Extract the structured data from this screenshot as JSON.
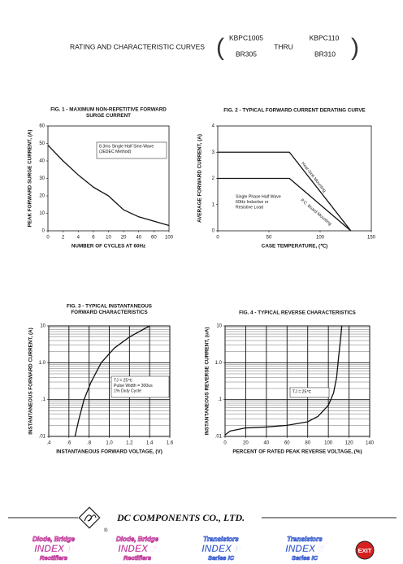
{
  "header": {
    "title": "RATING AND CHARACTERISTIC CURVES",
    "part_from_top": "KBPC1005",
    "part_from_bottom": "BR305",
    "thru": "THRU",
    "part_to_top": "KBPC110",
    "part_to_bottom": "BR310"
  },
  "chart_data": [
    {
      "type": "line",
      "title": [
        "FIG. 1 - MAXIMUM NON-REPETITIVE FORWARD",
        "SURGE CURRENT"
      ],
      "xlabel": "NUMBER OF CYCLES AT 60Hz",
      "ylabel": "PEAK FORWARD SURGE CURRENT, (A)",
      "categories": [
        "0",
        "2",
        "4",
        "6",
        "10",
        "20",
        "40",
        "60",
        "100"
      ],
      "series": [
        {
          "color": "#111111",
          "values": [
            49,
            40,
            32,
            25,
            20,
            12,
            8,
            5.5,
            3
          ]
        }
      ],
      "ylim": [
        0,
        60
      ],
      "yticks": [
        0,
        10,
        20,
        30,
        40,
        50,
        60
      ],
      "grid": false,
      "annotations": [
        [
          "8.3ms Single Half Sine-Wave",
          "(JEDEC Method)"
        ]
      ]
    },
    {
      "type": "line",
      "title": [
        "FIG. 2 - TYPICAL FORWARD CURRENT DERATING CURVE"
      ],
      "xlabel": "CASE TEMPERATURE, (℃)",
      "ylabel": "AVERAGE FORWARD CURRENT, (A)",
      "x": [
        0,
        70,
        130
      ],
      "series": [
        {
          "name": "Heat-Sink Mounting",
          "color": "#111111",
          "values": [
            3,
            3,
            0
          ]
        },
        {
          "name": "P.C. Board Mounting",
          "color": "#111111",
          "values": [
            2,
            2,
            0
          ]
        }
      ],
      "xlim": [
        0,
        150
      ],
      "xticks": [
        0,
        50,
        100,
        150
      ],
      "ylim": [
        0,
        4
      ],
      "yticks": [
        0,
        1,
        2,
        3,
        4
      ],
      "grid": false,
      "annotations": [
        [
          "Single Phase Half Wave",
          "60Hz Inductive or",
          "Resistive Load"
        ]
      ]
    },
    {
      "type": "line",
      "title": [
        "FIG. 3 - TYPICAL INSTANTANEOUS",
        "FORWARD CHARACTERISTICS"
      ],
      "xlabel": "INSTANTANEOUS FORWARD VOLTAGE, (V)",
      "ylabel": "INSTANTANEOUS FORWARD CURRENT, (A)",
      "x": [
        0.66,
        0.7,
        0.75,
        0.82,
        0.92,
        1.05,
        1.2,
        1.4
      ],
      "series": [
        {
          "color": "#111111",
          "values": [
            0.01,
            0.03,
            0.1,
            0.3,
            1,
            2.5,
            5,
            10
          ]
        }
      ],
      "xlim": [
        0.4,
        1.6
      ],
      "xticks": [
        {
          "value": 0.4,
          "label": ".4"
        },
        {
          "value": 0.6,
          "label": ".6"
        },
        {
          "value": 0.8,
          "label": ".8"
        },
        {
          "value": 1.0,
          "label": "1.0"
        },
        {
          "value": 1.2,
          "label": "1.2"
        },
        {
          "value": 1.4,
          "label": "1.4"
        },
        {
          "value": 1.6,
          "label": "1.6"
        }
      ],
      "ylim": [
        0.01,
        10
      ],
      "yscale": "log",
      "yticks": [
        {
          "value": 0.01,
          "label": ".01"
        },
        {
          "value": 0.1,
          "label": ".1"
        },
        {
          "value": 1,
          "label": "1.0"
        },
        10
      ],
      "grid": true,
      "annotations": [
        [
          "TJ = 25℃",
          "Pulse Width = 300us",
          "1% Duty Cycle"
        ]
      ]
    },
    {
      "type": "line",
      "title": [
        "FIG. 4 - TYPICAL REVERSE CHARACTERISTICS"
      ],
      "xlabel": "PERCENT OF RATED PEAK REVERSE VOLTAGE, (%)",
      "ylabel": "INSTANTANEOUS REVERSE CURRENT, (uA)",
      "x": [
        0,
        5,
        20,
        40,
        60,
        80,
        90,
        100,
        105,
        108,
        110,
        112,
        113
      ],
      "series": [
        {
          "color": "#111111",
          "values": [
            0.011,
            0.014,
            0.017,
            0.018,
            0.02,
            0.025,
            0.035,
            0.07,
            0.15,
            0.4,
            1.5,
            5,
            10
          ]
        }
      ],
      "xlim": [
        0,
        140
      ],
      "xticks": [
        0,
        20,
        40,
        60,
        80,
        100,
        120,
        140
      ],
      "ylim": [
        0.01,
        10
      ],
      "yscale": "log",
      "yticks": [
        {
          "value": 0.01,
          "label": ".01"
        },
        {
          "value": 0.1,
          "label": ".1"
        },
        {
          "value": 1,
          "label": "1.0"
        },
        10
      ],
      "grid": true,
      "annotations": [
        [
          "TJ = 25℃"
        ]
      ]
    }
  ],
  "footer": {
    "company": "DC COMPONENTS CO., LTD.",
    "registered": "®",
    "buttons": [
      [
        "Diode, Bridge",
        "INDEX①",
        "Rectifiers"
      ],
      [
        "Diode, Bridge",
        "INDEX②",
        "Rectifiers"
      ],
      [
        "Transistors",
        "INDEX①",
        "Series IC"
      ],
      [
        "Transistors",
        "INDEX②",
        "Series IC"
      ]
    ],
    "exit": "EXIT"
  }
}
